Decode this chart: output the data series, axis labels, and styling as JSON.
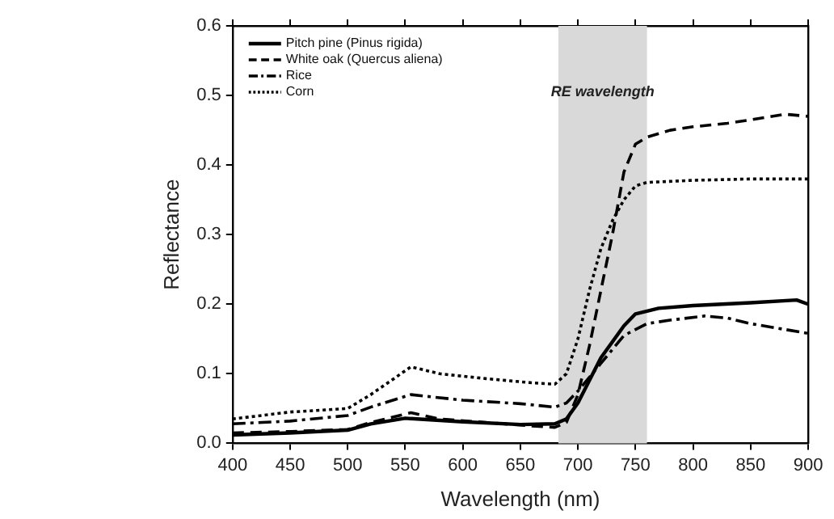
{
  "chart_data": {
    "type": "line",
    "xlabel": "Wavelength (nm)",
    "ylabel": "Reflectance",
    "xlim": [
      400,
      900
    ],
    "xticks": [
      400,
      450,
      500,
      550,
      600,
      650,
      700,
      750,
      800,
      850,
      900
    ],
    "ylim": [
      0,
      0.6
    ],
    "yticks": [
      {
        "value": 0,
        "label": "0.0"
      },
      {
        "value": 0.1,
        "label": "0.1"
      },
      {
        "value": 0.2,
        "label": "0.2"
      },
      {
        "value": 0.3,
        "label": "0.3"
      },
      {
        "value": 0.4,
        "label": "0.4"
      },
      {
        "value": 0.5,
        "label": "0.5"
      },
      {
        "value": 0.6,
        "label": "0.6"
      }
    ],
    "grid": false,
    "legend": "top left",
    "marker": "none",
    "bands": [
      {
        "axis": "x",
        "from": 683,
        "to": 760,
        "label": "RE wavelength",
        "color": "#d9d9d9"
      }
    ],
    "series": [
      {
        "name": "Pitch pine (Pinus rigida)",
        "color": "#000000",
        "line_style": "solid",
        "x": [
          400,
          450,
          500,
          520,
          550,
          600,
          650,
          680,
          690,
          700,
          720,
          740,
          750,
          760,
          770,
          800,
          850,
          890,
          900
        ],
        "values": [
          0.012,
          0.015,
          0.019,
          0.028,
          0.036,
          0.031,
          0.027,
          0.028,
          0.035,
          0.058,
          0.123,
          0.169,
          0.186,
          0.19,
          0.194,
          0.198,
          0.202,
          0.206,
          0.2
        ]
      },
      {
        "name": "White oak (Quercus aliena)",
        "color": "#000000",
        "line_style": "dashed",
        "x": [
          400,
          450,
          500,
          520,
          555,
          580,
          620,
          660,
          680,
          690,
          700,
          710,
          720,
          730,
          740,
          750,
          760,
          780,
          800,
          830,
          850,
          880,
          900
        ],
        "values": [
          0.015,
          0.017,
          0.02,
          0.03,
          0.044,
          0.035,
          0.03,
          0.025,
          0.023,
          0.03,
          0.07,
          0.14,
          0.22,
          0.3,
          0.39,
          0.43,
          0.44,
          0.45,
          0.455,
          0.46,
          0.465,
          0.473,
          0.47
        ]
      },
      {
        "name": "Rice",
        "color": "#000000",
        "line_style": "dashdot",
        "x": [
          400,
          450,
          500,
          520,
          555,
          600,
          650,
          680,
          690,
          700,
          720,
          740,
          760,
          780,
          810,
          830,
          850,
          900
        ],
        "values": [
          0.028,
          0.032,
          0.04,
          0.052,
          0.07,
          0.062,
          0.057,
          0.052,
          0.058,
          0.075,
          0.115,
          0.155,
          0.172,
          0.177,
          0.183,
          0.18,
          0.172,
          0.158
        ]
      },
      {
        "name": "Corn",
        "color": "#000000",
        "line_style": "dotted",
        "x": [
          400,
          450,
          500,
          520,
          555,
          580,
          620,
          660,
          680,
          690,
          700,
          710,
          720,
          730,
          740,
          750,
          760,
          800,
          850,
          900
        ],
        "values": [
          0.035,
          0.045,
          0.05,
          0.07,
          0.11,
          0.1,
          0.093,
          0.087,
          0.085,
          0.1,
          0.15,
          0.22,
          0.28,
          0.32,
          0.35,
          0.37,
          0.375,
          0.378,
          0.38,
          0.38
        ]
      }
    ]
  }
}
